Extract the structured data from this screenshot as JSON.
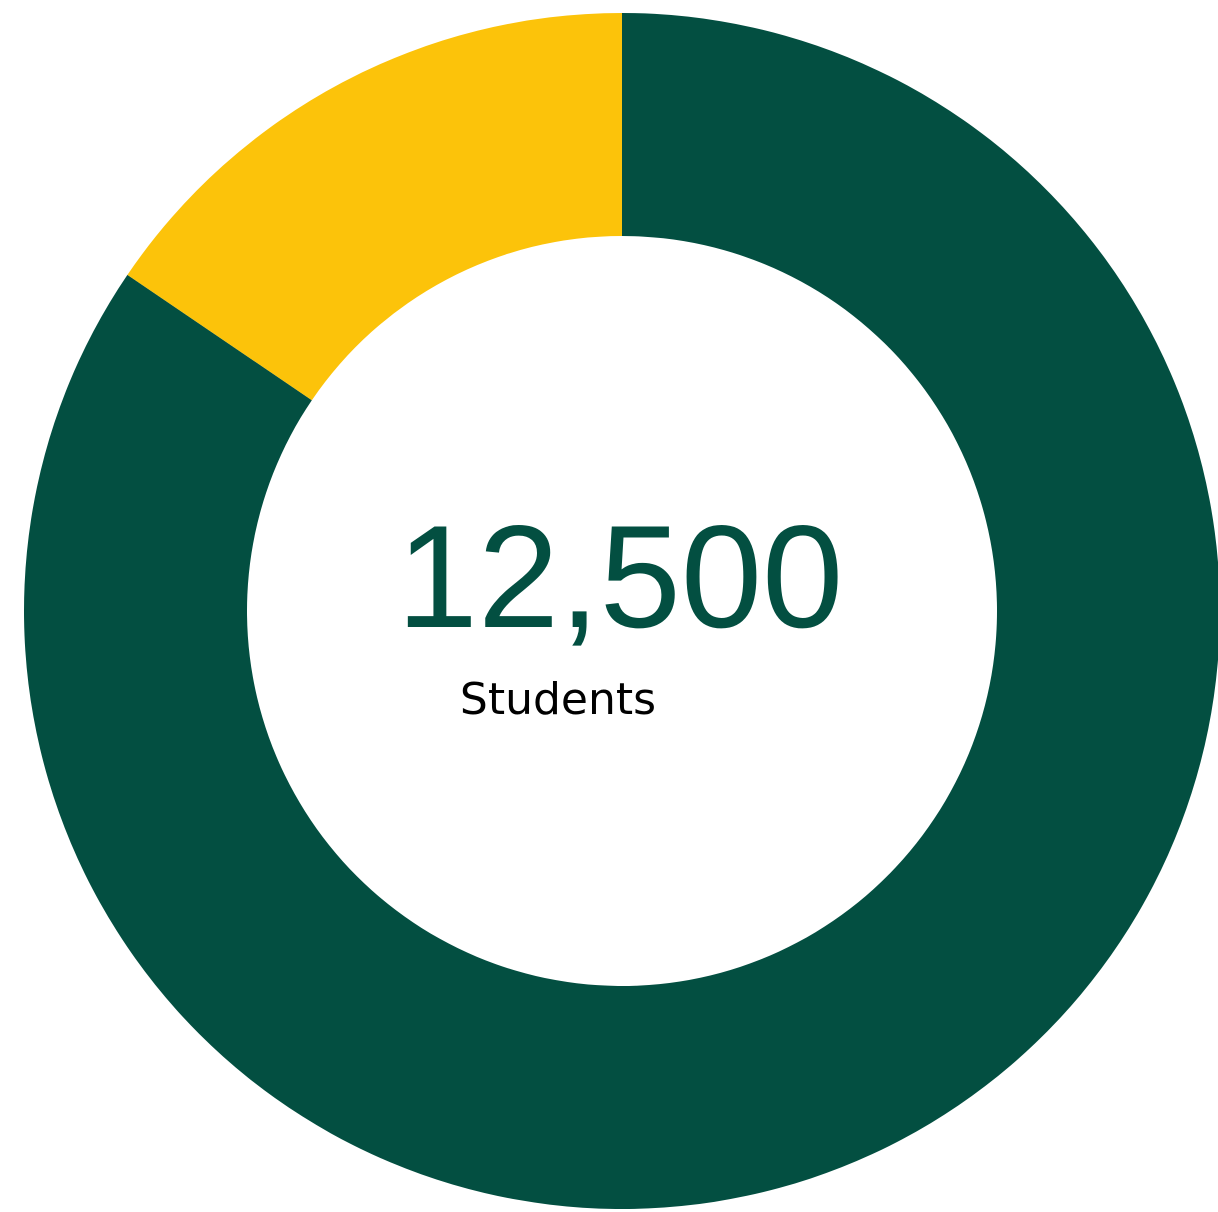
{
  "chart_data": {
    "type": "pie",
    "categories": [
      "",
      ""
    ],
    "values": [
      84.5,
      15.5
    ],
    "colors": [
      "#034f41",
      "#fcc30a"
    ],
    "center_value": "12,500",
    "center_label": "Students",
    "start_angle_deg": 0,
    "direction": "clockwise",
    "title": "",
    "grid": false,
    "legend": "none"
  }
}
